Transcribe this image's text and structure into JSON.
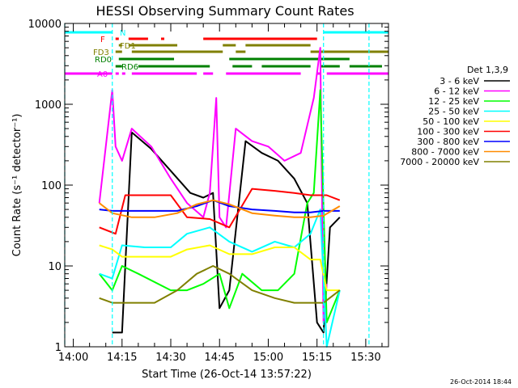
{
  "chart_data": {
    "type": "line",
    "title": "HESSI Observing Summary Count Rates",
    "xlabel": "Start Time (26-Oct-14 13:57:22)",
    "ylabel": "Count Rate (s⁻¹ detector⁻¹)",
    "y_scale": "log",
    "ylim": [
      1,
      10000
    ],
    "xlim": [
      "13:57:22",
      "15:37:00"
    ],
    "x_ticks": [
      "14:00",
      "14:15",
      "14:30",
      "14:45",
      "15:00",
      "15:15",
      "15:30"
    ],
    "y_ticks": [
      "1",
      "10",
      "100",
      "1000",
      "10000"
    ],
    "legend_title": "Det 1,3,9",
    "legend_placement": "right",
    "footer": "26-Oct-2014 18:44",
    "series": [
      {
        "name": "3 - 6 keV",
        "color": "#000000",
        "x": [
          "14:12",
          "14:15",
          "14:18",
          "14:24",
          "14:30",
          "14:36",
          "14:40",
          "14:43",
          "14:45",
          "14:48",
          "14:53",
          "14:58",
          "15:03",
          "15:08",
          "15:12",
          "15:15",
          "15:17",
          "15:19",
          "15:22"
        ],
        "y": [
          1.5,
          1.5,
          450,
          280,
          150,
          80,
          70,
          80,
          3,
          5,
          350,
          250,
          200,
          120,
          60,
          2,
          1.5,
          30,
          40
        ]
      },
      {
        "name": "6 - 12 keV",
        "color": "#ff00ff",
        "x": [
          "14:08",
          "14:12",
          "14:13",
          "14:15",
          "14:18",
          "14:24",
          "14:30",
          "14:35",
          "14:40",
          "14:42",
          "14:44",
          "14:45",
          "14:47",
          "14:50",
          "14:55",
          "15:00",
          "15:05",
          "15:10",
          "15:14",
          "15:16",
          "15:17",
          "15:18"
        ],
        "y": [
          60,
          1500,
          300,
          200,
          500,
          300,
          120,
          60,
          40,
          80,
          1200,
          40,
          30,
          500,
          350,
          300,
          200,
          250,
          1200,
          5000,
          2,
          6
        ]
      },
      {
        "name": "12 - 25 keV",
        "color": "#00ff00",
        "x": [
          "14:08",
          "14:12",
          "14:15",
          "14:20",
          "14:30",
          "14:35",
          "14:40",
          "14:45",
          "14:48",
          "14:52",
          "14:58",
          "15:03",
          "15:08",
          "15:12",
          "15:14",
          "15:16",
          "15:18",
          "15:22"
        ],
        "y": [
          8,
          5,
          10,
          8,
          5,
          5,
          6,
          8,
          3,
          8,
          5,
          5,
          8,
          60,
          80,
          1500,
          2,
          5
        ]
      },
      {
        "name": "25 - 50 keV",
        "color": "#00ffff",
        "x": [
          "14:08",
          "14:12",
          "14:15",
          "14:22",
          "14:30",
          "14:35",
          "14:42",
          "14:48",
          "14:55",
          "15:02",
          "15:08",
          "15:13",
          "15:16",
          "15:18",
          "15:22"
        ],
        "y": [
          8,
          7,
          18,
          17,
          17,
          25,
          30,
          20,
          15,
          20,
          17,
          25,
          50,
          1,
          5
        ]
      },
      {
        "name": "50 - 100 keV",
        "color": "#ffff00",
        "x": [
          "14:08",
          "14:12",
          "14:15",
          "14:22",
          "14:30",
          "14:35",
          "14:42",
          "14:48",
          "14:55",
          "15:02",
          "15:08",
          "15:13",
          "15:16",
          "15:18",
          "15:22"
        ],
        "y": [
          18,
          16,
          13,
          13,
          13,
          16,
          18,
          14,
          14,
          17,
          17,
          12,
          12,
          5,
          5
        ]
      },
      {
        "name": "100 - 300 keV",
        "color": "#ff0000",
        "x": [
          "14:08",
          "14:13",
          "14:16",
          "14:24",
          "14:30",
          "14:35",
          "14:42",
          "14:48",
          "14:55",
          "15:02",
          "15:08",
          "15:13",
          "15:16",
          "15:18",
          "15:22"
        ],
        "y": [
          30,
          25,
          75,
          75,
          75,
          40,
          38,
          30,
          90,
          85,
          80,
          75,
          75,
          75,
          65
        ]
      },
      {
        "name": "300 - 800 keV",
        "color": "#0000ff",
        "x": [
          "14:08",
          "14:12",
          "14:18",
          "14:25",
          "14:32",
          "14:38",
          "14:43",
          "14:48",
          "14:55",
          "15:02",
          "15:08",
          "15:13",
          "15:17",
          "15:22"
        ],
        "y": [
          50,
          48,
          48,
          48,
          48,
          55,
          65,
          55,
          50,
          48,
          46,
          46,
          48,
          48
        ]
      },
      {
        "name": "800 - 7000 keV",
        "color": "#ff8c00",
        "x": [
          "14:08",
          "14:12",
          "14:18",
          "14:25",
          "14:32",
          "14:38",
          "14:43",
          "14:48",
          "14:55",
          "15:02",
          "15:08",
          "15:13",
          "15:17",
          "15:22"
        ],
        "y": [
          60,
          45,
          40,
          40,
          45,
          58,
          65,
          58,
          45,
          42,
          40,
          40,
          42,
          55
        ]
      },
      {
        "name": "7000 - 20000 keV",
        "color": "#808000",
        "x": [
          "14:08",
          "14:12",
          "14:18",
          "14:25",
          "14:32",
          "14:38",
          "14:43",
          "14:48",
          "14:55",
          "15:02",
          "15:08",
          "15:13",
          "15:17",
          "15:22"
        ],
        "y": [
          4,
          3.5,
          3.5,
          3.5,
          5,
          8,
          10,
          8,
          5,
          4,
          3.5,
          3.5,
          3.5,
          5
        ]
      }
    ],
    "flag_bars": [
      {
        "label": "N",
        "color": "#00ffff",
        "segments": [
          [
            "13:57:22",
            "14:12"
          ],
          [
            "15:17",
            "15:37"
          ]
        ]
      },
      {
        "label": "F",
        "color": "#ff0000",
        "segments": [
          [
            "14:13",
            "14:14"
          ],
          [
            "14:17",
            "14:23"
          ],
          [
            "14:27",
            "14:28"
          ],
          [
            "14:40",
            "15:15"
          ]
        ]
      },
      {
        "label": "FD1",
        "color": "#808000",
        "segments": [
          [
            "14:14",
            "14:15"
          ],
          [
            "14:17",
            "14:32"
          ],
          [
            "14:46",
            "14:50"
          ],
          [
            "14:53",
            "15:13"
          ]
        ]
      },
      {
        "label": "FD3",
        "color": "#808000",
        "segments": [
          [
            "14:13",
            "14:15"
          ],
          [
            "14:18",
            "14:46"
          ],
          [
            "14:50",
            "14:53"
          ],
          [
            "15:13",
            "15:37"
          ]
        ]
      },
      {
        "label": "RD0",
        "color": "#008000",
        "segments": [
          [
            "14:14",
            "14:31"
          ],
          [
            "14:48",
            "15:25"
          ]
        ]
      },
      {
        "label": "RD6",
        "color": "#008000",
        "segments": [
          [
            "14:13",
            "14:15"
          ],
          [
            "14:20",
            "14:42"
          ],
          [
            "14:49",
            "14:55"
          ],
          [
            "14:58",
            "15:13"
          ],
          [
            "15:16",
            "15:22"
          ],
          [
            "15:25",
            "15:35"
          ]
        ]
      },
      {
        "label": "A0",
        "color": "#ff00ff",
        "segments": [
          [
            "13:57:22",
            "14:12"
          ],
          [
            "14:13",
            "14:14"
          ],
          [
            "14:15",
            "14:16"
          ],
          [
            "14:18",
            "14:38"
          ],
          [
            "14:40",
            "14:43"
          ],
          [
            "14:47",
            "15:10"
          ],
          [
            "15:15",
            "15:16"
          ],
          [
            "15:18",
            "15:37"
          ]
        ]
      }
    ],
    "vertical_markers": [
      {
        "x": "14:12",
        "color": "#00ffff"
      },
      {
        "x": "15:17",
        "color": "#00ffff"
      },
      {
        "x": "15:31",
        "color": "#00ffff"
      },
      {
        "x": "13:57:22",
        "color": "#00ffff"
      }
    ]
  }
}
